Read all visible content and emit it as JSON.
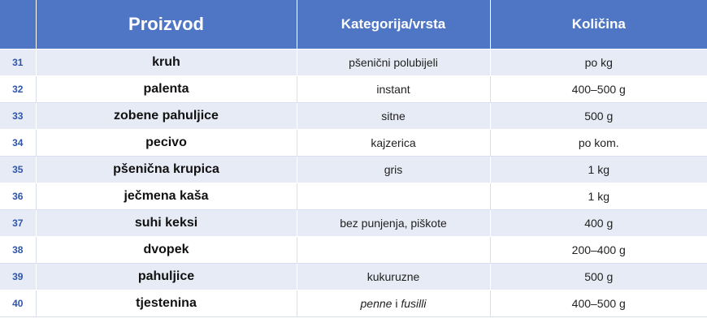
{
  "header": {
    "num": "",
    "product": "Proizvod",
    "category": "Kategorija/vrsta",
    "quantity": "Količina"
  },
  "rows": [
    {
      "num": "31",
      "product": "kruh",
      "category": "pšenični polubijeli",
      "quantity": "po kg"
    },
    {
      "num": "32",
      "product": "palenta",
      "category": "instant",
      "quantity": "400–500 g"
    },
    {
      "num": "33",
      "product": "zobene pahuljice",
      "category": "sitne",
      "quantity": "500 g"
    },
    {
      "num": "34",
      "product": "pecivo",
      "category": "kajzerica",
      "quantity": "po kom."
    },
    {
      "num": "35",
      "product": "pšenična krupica",
      "category": "gris",
      "quantity": "1 kg"
    },
    {
      "num": "36",
      "product": "ječmena kaša",
      "category": "",
      "quantity": "1 kg"
    },
    {
      "num": "37",
      "product": "suhi keksi",
      "category": "bez punjenja, piškote",
      "quantity": "400 g"
    },
    {
      "num": "38",
      "product": "dvopek",
      "category": "",
      "quantity": "200–400 g"
    },
    {
      "num": "39",
      "product": "pahuljice",
      "category": "kukuruzne",
      "quantity": "500 g"
    },
    {
      "num": "40",
      "product": "tjestenina",
      "category": {
        "part1": "penne",
        "joiner": " i ",
        "part2": "fusilli"
      },
      "quantity": "400–500 g"
    }
  ]
}
